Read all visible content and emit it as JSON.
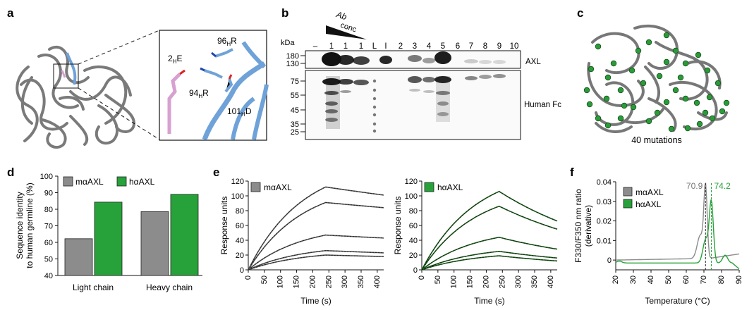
{
  "panel_labels": {
    "a": "a",
    "b": "b",
    "c": "c",
    "d": "d",
    "e": "e",
    "f": "f"
  },
  "panel_a": {
    "residues": {
      "r1": "2",
      "r1s": "H",
      "r1t": "E",
      "r2": "96",
      "r2s": "H",
      "r2t": "R",
      "r3": "94",
      "r3s": "H",
      "r3t": "R",
      "r4": "101",
      "r4s": "H",
      "r4t": "D"
    }
  },
  "panel_b": {
    "kda_label": "kDa",
    "ab_label": "Ab",
    "conc_label": "conc",
    "lanes": [
      "–",
      "1",
      "1",
      "1",
      "L",
      "I",
      "2",
      "3",
      "4",
      "5",
      "6",
      "7",
      "8",
      "9",
      "10"
    ],
    "kda_upper": [
      "180",
      "130"
    ],
    "kda_lower": [
      "75",
      "55",
      "45",
      "35",
      "25"
    ],
    "label_upper": "AXL",
    "label_lower": "Human Fc"
  },
  "panel_c": {
    "caption": "40 mutations"
  },
  "colors": {
    "gray": "#8c8c8c",
    "green": "#27a23a",
    "dark_green": "#1d5a1d",
    "struct_gray": "#7a7a7a",
    "blue": "#6fa2d8",
    "pink": "#d8a0d0"
  },
  "chart_data": [
    {
      "panel": "d",
      "type": "bar",
      "categories": [
        "Light chain",
        "Heavy chain"
      ],
      "series": [
        {
          "name": "mαAXL",
          "values": [
            62.2,
            78.6
          ],
          "color": "#8c8c8c"
        },
        {
          "name": "hαAXL",
          "values": [
            84.3,
            89.0
          ],
          "color": "#27a23a"
        }
      ],
      "ylabel_line1": "Sequence identity",
      "ylabel_line2": "to human germline (%)",
      "ylim": [
        40,
        100
      ],
      "yticks": [
        "40",
        "50",
        "60",
        "70",
        "80",
        "90",
        "100"
      ],
      "legend": "top"
    },
    {
      "panel": "e-left",
      "type": "line",
      "legend_label": "mαAXL",
      "xlabel": "Time (s)",
      "ylabel": "Response units",
      "xlim": [
        0,
        420
      ],
      "ylim": [
        0,
        120
      ],
      "xticks": [
        "0",
        "50",
        "100",
        "150",
        "200",
        "250",
        "300",
        "350",
        "400"
      ],
      "yticks": [
        "0",
        "20",
        "40",
        "60",
        "80",
        "100",
        "120"
      ],
      "series": [
        {
          "values_peak": 112,
          "end": 101
        },
        {
          "values_peak": 91,
          "end": 84
        },
        {
          "values_peak": 47,
          "end": 43
        },
        {
          "values_peak": 26,
          "end": 23
        },
        {
          "values_peak": 20,
          "end": 18
        }
      ]
    },
    {
      "panel": "e-right",
      "type": "line",
      "legend_label": "hαAXL",
      "xlabel": "Time (s)",
      "ylabel": "Response units",
      "xlim": [
        0,
        420
      ],
      "ylim": [
        0,
        120
      ],
      "xticks": [
        "0",
        "50",
        "100",
        "150",
        "200",
        "250",
        "300",
        "350",
        "400"
      ],
      "yticks": [
        "0",
        "20",
        "40",
        "60",
        "80",
        "100",
        "120"
      ],
      "series": [
        {
          "values_peak": 106,
          "end": 66
        },
        {
          "values_peak": 86,
          "end": 55
        },
        {
          "values_peak": 44,
          "end": 28
        },
        {
          "values_peak": 25,
          "end": 16
        },
        {
          "values_peak": 19,
          "end": 12
        }
      ]
    },
    {
      "panel": "f",
      "type": "line",
      "xlabel": "Temperature (°C)",
      "ylabel_line1": "F330/F350 nm ratio",
      "ylabel_line2": "(derivative)",
      "xlim": [
        20,
        90
      ],
      "ylim": [
        -0.005,
        0.04
      ],
      "xticks": [
        "20",
        "30",
        "40",
        "50",
        "60",
        "70",
        "80",
        "90"
      ],
      "yticks": [
        "0",
        "0.01",
        "0.02",
        "0.03",
        "0.04"
      ],
      "series": [
        {
          "name": "mαAXL",
          "tm": 70.9,
          "tm_label": "70.9",
          "color": "#8c8c8c"
        },
        {
          "name": "hαAXL",
          "tm": 74.2,
          "tm_label": "74.2",
          "color": "#27a23a"
        }
      ]
    }
  ]
}
